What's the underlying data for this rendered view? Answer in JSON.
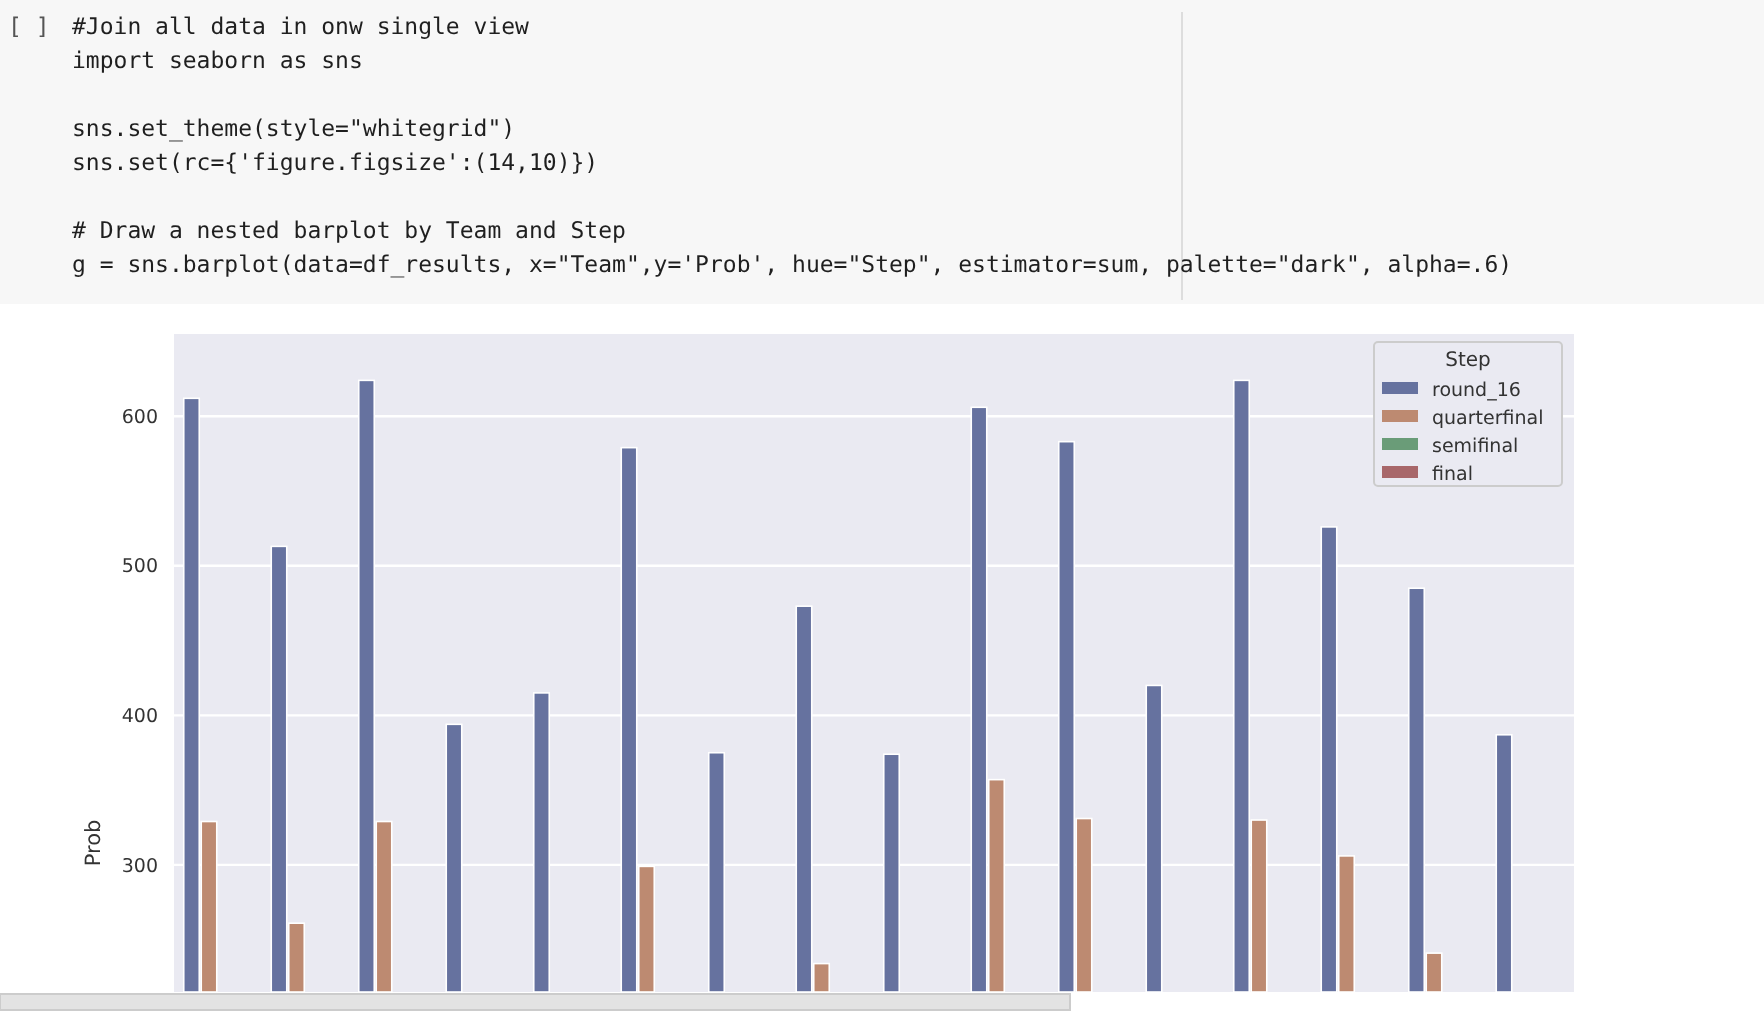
{
  "chart_data": {
    "type": "bar",
    "ylabel": "Prob",
    "legend_title": "Step",
    "legend": "top right",
    "grid": "y",
    "tick_labels": "y",
    "categories": [
      null,
      null,
      null,
      null,
      null,
      null,
      null,
      null,
      null,
      null,
      null,
      null,
      null,
      null,
      null,
      null
    ],
    "ylim": [
      215,
      655
    ],
    "yticks": [
      300,
      400,
      500,
      600
    ],
    "series": [
      {
        "name": "round_16",
        "color": "#66729f",
        "values": [
          612,
          513,
          624,
          394,
          415,
          579,
          375,
          473,
          374,
          606,
          583,
          420,
          624,
          526,
          485,
          387
        ]
      },
      {
        "name": "quarterfinal",
        "color": "#bd8a71",
        "values": [
          329,
          261,
          329,
          null,
          null,
          299,
          null,
          234,
          null,
          357,
          331,
          null,
          330,
          306,
          241,
          null
        ]
      },
      {
        "name": "semifinal",
        "color": "#6a9c78",
        "values": [
          null,
          null,
          null,
          null,
          null,
          null,
          null,
          null,
          null,
          null,
          null,
          null,
          null,
          null,
          null,
          null
        ]
      },
      {
        "name": "final",
        "color": "#a8676a",
        "values": [
          null,
          null,
          null,
          null,
          null,
          null,
          null,
          null,
          null,
          null,
          null,
          null,
          null,
          null,
          null,
          null
        ]
      }
    ],
    "annotations": [
      "[ ]",
      "#Join all data in onw single view",
      "import seaborn as sns",
      "sns.set_theme(style=\"whitegrid\")",
      "sns.set(rc={'figure.figsize':(14,10)})",
      "# Draw a nested barplot by Team and Step",
      "g = sns.barplot(data=df_results, x=\"Team\",y='Prob', hue=\"Step\", estimator=sum, palette=\"dark\", alpha=.6)"
    ]
  }
}
